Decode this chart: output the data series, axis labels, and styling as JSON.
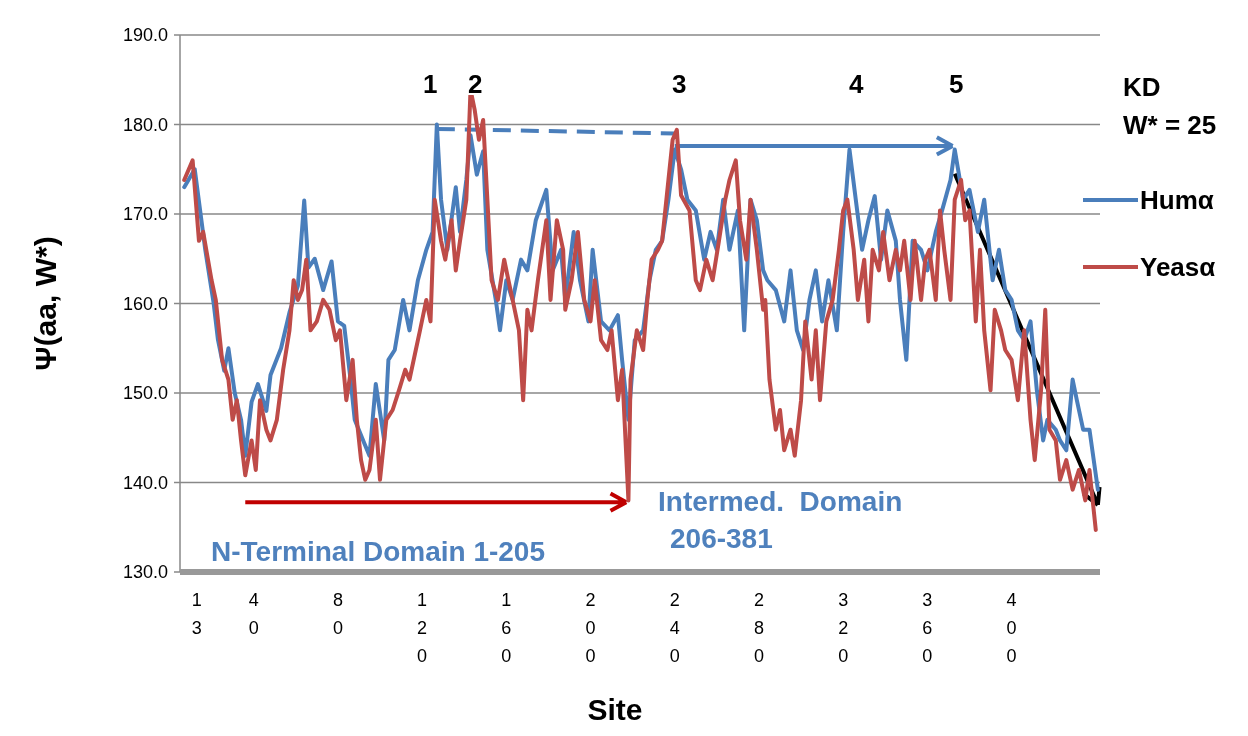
{
  "chart_data": {
    "type": "line",
    "xlabel": "Site",
    "ylabel": "Ψ(aa, W*)",
    "legend_title": "KD\nW* = 25",
    "legend": "right",
    "grid": "y",
    "line_style": "solid",
    "marker": "none",
    "xlim": [
      5,
      442
    ],
    "xticks": [
      13,
      40,
      80,
      120,
      160,
      200,
      240,
      280,
      320,
      360,
      400
    ],
    "ylim": [
      130,
      190
    ],
    "yticks": [
      {
        "value": 130,
        "label": "130.0"
      },
      {
        "value": 140,
        "label": "140.0"
      },
      {
        "value": 150,
        "label": "150.0"
      },
      {
        "value": 160,
        "label": "160.0"
      },
      {
        "value": 170,
        "label": "170.0"
      },
      {
        "value": 180,
        "label": "180.0"
      },
      {
        "value": 190,
        "label": "190.0"
      }
    ],
    "annotations": [
      "1",
      "2",
      "3",
      "4",
      "5",
      "N-Terminal Domain 1-205",
      "Intermed.  Domain\n206-381"
    ],
    "series": [
      {
        "name": "Humα",
        "color": "#4a7ebb",
        "x": [
          7,
          12,
          17,
          21,
          23,
          26,
          28,
          31,
          34,
          36,
          39,
          42,
          46,
          48,
          53,
          57,
          61,
          64,
          66,
          69,
          73,
          77,
          80,
          83,
          86,
          88,
          92,
          95,
          98,
          102,
          104,
          107,
          111,
          114,
          118,
          122,
          125,
          127,
          129,
          132,
          136,
          138,
          141,
          143,
          146,
          149,
          151,
          155,
          157,
          160,
          163,
          167,
          170,
          174,
          179,
          182,
          186,
          188,
          192,
          195,
          199,
          201,
          205,
          209,
          213,
          215,
          218,
          221,
          225,
          228,
          231,
          234,
          237,
          240,
          243,
          246,
          250,
          254,
          257,
          260,
          263,
          266,
          270,
          273,
          276,
          279,
          282,
          284,
          288,
          292,
          295,
          298,
          301,
          304,
          307,
          310,
          313,
          317,
          320,
          323,
          326,
          329,
          332,
          335,
          338,
          341,
          345,
          347,
          350,
          353,
          357,
          360,
          364,
          367,
          371,
          373,
          377,
          380,
          384,
          387,
          391,
          394,
          397,
          400,
          403,
          406,
          409,
          412,
          415,
          417,
          421,
          423,
          426,
          429,
          431,
          434,
          437,
          441
        ],
        "values": [
          173,
          175,
          166,
          160,
          156,
          152.5,
          155,
          150,
          147,
          143,
          149,
          151,
          148,
          152,
          155,
          159,
          162,
          171.5,
          164,
          165,
          161.5,
          164.7,
          158,
          157.5,
          151.5,
          147,
          144.7,
          143,
          151,
          144.7,
          153.7,
          154.8,
          160.4,
          157,
          162.6,
          166,
          168,
          180,
          171.6,
          166,
          173,
          168,
          173.8,
          178.8,
          174.4,
          177,
          166,
          160.4,
          157,
          162.6,
          160.4,
          164.9,
          163.7,
          169.3,
          172.7,
          163.7,
          166,
          160.4,
          168,
          162.6,
          158,
          166,
          158,
          157,
          158.7,
          153.7,
          147,
          155.9,
          157,
          162.6,
          166,
          167,
          171.6,
          177.2,
          175,
          171.6,
          170.4,
          164.9,
          168,
          166,
          171.6,
          166,
          170.4,
          157,
          171.6,
          169.3,
          163.7,
          162.6,
          161.5,
          158,
          163.7,
          157,
          154.8,
          160.4,
          163.7,
          158,
          162.6,
          157,
          168,
          177.2,
          171.6,
          166,
          169.3,
          172,
          164.9,
          170.4,
          167,
          160.4,
          153.7,
          167,
          166,
          163.7,
          168,
          170.4,
          173.8,
          177.2,
          171.6,
          172.7,
          168,
          171.6,
          162.6,
          166,
          161.5,
          160.4,
          157,
          155.9,
          158,
          150.3,
          144.7,
          147,
          145.9,
          144.7,
          143.6,
          151.5,
          149.2,
          145.9,
          145.9,
          139.2
        ]
      },
      {
        "name": "Yeasα",
        "color": "#be4b48",
        "x": [
          7,
          11,
          14,
          16,
          20,
          22,
          25,
          28,
          30,
          32,
          34,
          36,
          39,
          41,
          43,
          46,
          48,
          51,
          54,
          57,
          59,
          61,
          63,
          65,
          67,
          70,
          73,
          76,
          79,
          81,
          84,
          87,
          89,
          91,
          93,
          95,
          98,
          100,
          103,
          106,
          109,
          112,
          114,
          117,
          119,
          122,
          124,
          126,
          129,
          131,
          134,
          136,
          138,
          141,
          143,
          145,
          147,
          149,
          151,
          153,
          156,
          159,
          161,
          163,
          166,
          168,
          170,
          172,
          175,
          179,
          181,
          184,
          187,
          188,
          191,
          194,
          197,
          200,
          202,
          205,
          208,
          210,
          213,
          215,
          218,
          219,
          222,
          225,
          227,
          229,
          232,
          234,
          237,
          239,
          241,
          243,
          247,
          250,
          252,
          255,
          258,
          261,
          264,
          266,
          269,
          271,
          274,
          276,
          279,
          282,
          283,
          285,
          288,
          290,
          292,
          295,
          297,
          300,
          302,
          305,
          307,
          309,
          312,
          315,
          318,
          320,
          322,
          325,
          327,
          330,
          332,
          334,
          337,
          339,
          342,
          345,
          347,
          349,
          352,
          354,
          357,
          359,
          361,
          364,
          366,
          368,
          371,
          373,
          376,
          378,
          380,
          383,
          385,
          387,
          390,
          392,
          395,
          397,
          400,
          403,
          406,
          409,
          411,
          414,
          416,
          418,
          421,
          423,
          426,
          429,
          432,
          435,
          437,
          440
        ],
        "values": [
          173.8,
          176,
          167,
          168,
          162.6,
          160.4,
          153.7,
          151.5,
          147,
          149.2,
          144.7,
          140.8,
          144.7,
          141.4,
          149.2,
          145.9,
          144.7,
          147,
          152.6,
          157,
          162.6,
          160.4,
          161.5,
          164.9,
          157,
          158,
          160.4,
          159.3,
          155.9,
          157,
          149.2,
          153.7,
          147,
          142.5,
          140.3,
          141.4,
          147,
          140.3,
          147,
          148.1,
          150.3,
          152.6,
          151.5,
          154.8,
          157,
          160.4,
          158,
          171.6,
          167,
          164.9,
          169.3,
          163.7,
          167,
          171.6,
          183.9,
          181.6,
          178.3,
          180.5,
          171.6,
          162.6,
          160.4,
          164.9,
          162.6,
          160.4,
          157,
          149.2,
          159.3,
          157,
          162.6,
          169.3,
          160.4,
          169.3,
          166,
          159.3,
          162.6,
          168,
          160.4,
          158,
          162.6,
          155.9,
          154.8,
          157,
          149.2,
          152.6,
          138,
          151.5,
          157,
          154.8,
          160.4,
          164.9,
          166,
          167,
          173.8,
          178.3,
          179.4,
          172.1,
          170.4,
          162.6,
          161.5,
          164.9,
          162.6,
          167,
          171.6,
          173.8,
          176,
          169.3,
          164.9,
          171.6,
          166,
          159.3,
          160.4,
          151.5,
          145.9,
          148.1,
          143.6,
          145.9,
          143,
          149.2,
          158,
          151.5,
          157,
          149.2,
          158,
          160.4,
          166,
          170.4,
          171.6,
          166,
          160.4,
          164.9,
          158,
          166,
          163.7,
          168,
          162.6,
          166,
          163.7,
          167,
          160.4,
          167,
          160.4,
          164.9,
          166,
          160.4,
          170.4,
          166,
          160.4,
          171.6,
          173.8,
          169.3,
          170.4,
          158,
          166,
          157,
          150.3,
          159.3,
          157,
          154.8,
          153.7,
          149.2,
          157,
          147,
          142.5,
          150.3,
          159.3,
          145.9,
          144.7,
          140.3,
          142.5,
          139.2,
          141.4,
          138,
          141.4,
          134.7
        ]
      }
    ]
  }
}
